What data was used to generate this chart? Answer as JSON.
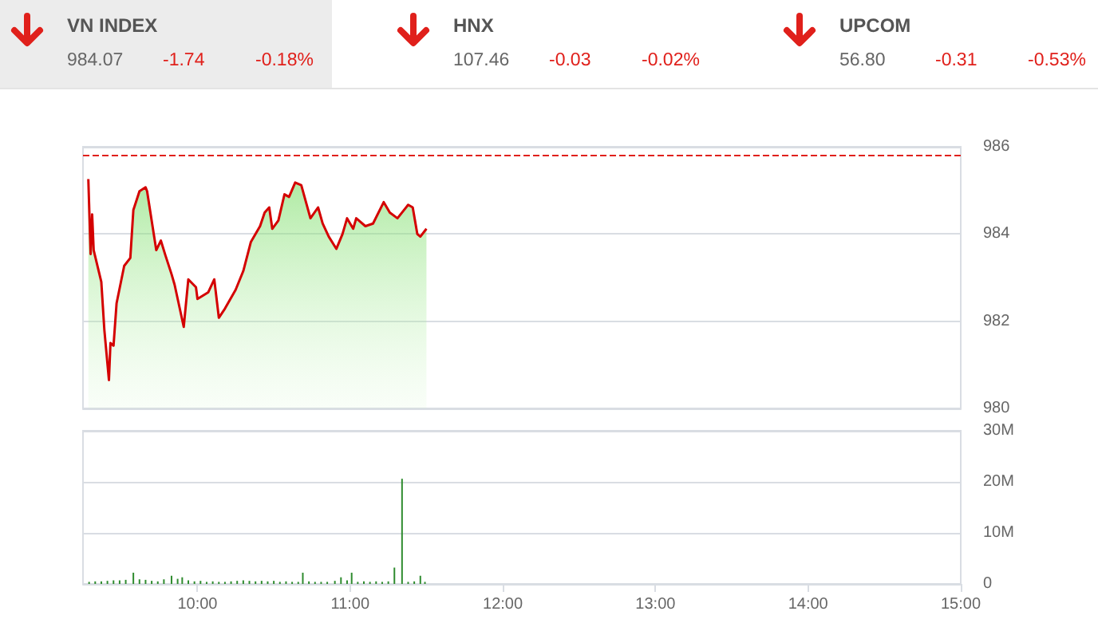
{
  "chart_data": [
    {
      "type": "other",
      "categories": [
        "VN INDEX",
        "HNX",
        "UPCOM"
      ],
      "annotations": [
        "984.07",
        "-1.74",
        "-0.18%",
        "107.46",
        "-0.03",
        "-0.02%",
        "56.80",
        "-0.31",
        "-0.53%"
      ]
    },
    {
      "type": "area",
      "xlim": [
        9.25,
        15
      ],
      "ylim": [
        980,
        986
      ],
      "yticks": [
        980,
        982,
        984,
        986
      ],
      "grid": "y",
      "tick_labels": "y",
      "marker": "none",
      "xticks": [
        {
          "value": 10,
          "label": null
        },
        {
          "value": 11,
          "label": null
        },
        {
          "value": 12,
          "label": null
        },
        {
          "value": 13,
          "label": null
        },
        {
          "value": 14,
          "label": null
        },
        {
          "value": 15,
          "label": null
        }
      ],
      "ref_lines": [
        {
          "axis": "y",
          "value": 985.81,
          "label": null,
          "color": "#e0201b",
          "line_style": "dashed"
        }
      ],
      "series": [
        {
          "color": "#d40000",
          "x": [
            9.285,
            9.3,
            9.31,
            9.32,
            9.37,
            9.39,
            9.42,
            9.43,
            9.45,
            9.47,
            9.52,
            9.56,
            9.58,
            9.62,
            9.66,
            9.67,
            9.73,
            9.76,
            9.79,
            9.83,
            9.85,
            9.91,
            9.94,
            9.99,
            10.0,
            10.07,
            10.11,
            10.14,
            10.18,
            10.25,
            10.3,
            10.35,
            10.41,
            10.44,
            10.47,
            10.49,
            10.53,
            10.57,
            10.6,
            10.64,
            10.68,
            10.74,
            10.79,
            10.82,
            10.86,
            10.91,
            10.95,
            10.98,
            11.02,
            11.04,
            11.1,
            11.15,
            11.22,
            11.26,
            11.31,
            11.38,
            11.41,
            11.44,
            11.46,
            11.5
          ],
          "values": [
            985.26,
            983.54,
            984.45,
            983.63,
            982.9,
            981.8,
            980.65,
            981.5,
            981.44,
            982.41,
            983.27,
            983.45,
            984.55,
            984.98,
            985.07,
            984.98,
            983.63,
            983.85,
            983.51,
            983.08,
            982.84,
            981.87,
            982.96,
            982.78,
            982.51,
            982.66,
            982.96,
            982.08,
            982.29,
            982.72,
            983.15,
            983.82,
            984.18,
            984.49,
            984.61,
            984.12,
            984.31,
            984.91,
            984.85,
            985.18,
            985.12,
            984.36,
            984.61,
            984.24,
            983.94,
            983.66,
            984.0,
            984.36,
            984.12,
            984.36,
            984.18,
            984.24,
            984.73,
            984.49,
            984.36,
            984.67,
            984.61,
            984.0,
            983.94,
            984.12
          ]
        }
      ]
    },
    {
      "type": "bar",
      "xlim": [
        9.25,
        15
      ],
      "ylim": [
        0,
        30
      ],
      "grid": "y",
      "yticks": [
        0,
        {
          "value": 10,
          "label": "10M"
        },
        {
          "value": 20,
          "label": "20M"
        },
        {
          "value": 30,
          "label": "30M"
        }
      ],
      "xticks": [
        {
          "value": 10,
          "label": "10:00"
        },
        {
          "value": 11,
          "label": "11:00"
        },
        {
          "value": 12,
          "label": "12:00"
        },
        {
          "value": 13,
          "label": "13:00"
        },
        {
          "value": 14,
          "label": "14:00"
        },
        {
          "value": 15,
          "label": "15:00"
        }
      ],
      "series": [
        {
          "color": "#2e8b2e",
          "x": [
            9.29,
            9.33,
            9.37,
            9.41,
            9.45,
            9.49,
            9.53,
            9.58,
            9.62,
            9.66,
            9.7,
            9.74,
            9.78,
            9.83,
            9.87,
            9.9,
            9.94,
            9.98,
            10.02,
            10.06,
            10.1,
            10.14,
            10.18,
            10.22,
            10.26,
            10.3,
            10.34,
            10.38,
            10.42,
            10.46,
            10.5,
            10.54,
            10.58,
            10.62,
            10.66,
            10.69,
            10.73,
            10.77,
            10.81,
            10.85,
            10.9,
            10.94,
            10.98,
            11.01,
            11.05,
            11.09,
            11.13,
            11.17,
            11.21,
            11.25,
            11.29,
            11.34,
            11.38,
            11.42,
            11.46,
            11.49
          ],
          "values": [
            0.4,
            0.5,
            0.5,
            0.6,
            0.7,
            0.7,
            0.8,
            2.2,
            0.9,
            0.8,
            0.6,
            0.5,
            0.9,
            1.6,
            1.0,
            1.3,
            0.7,
            0.5,
            0.6,
            0.4,
            0.5,
            0.4,
            0.4,
            0.5,
            0.6,
            0.7,
            0.6,
            0.5,
            0.6,
            0.5,
            0.6,
            0.4,
            0.5,
            0.4,
            0.4,
            2.2,
            0.5,
            0.4,
            0.4,
            0.4,
            0.6,
            1.3,
            0.7,
            2.2,
            0.4,
            0.5,
            0.4,
            0.5,
            0.4,
            0.5,
            3.2,
            20.6,
            0.4,
            0.5,
            1.6,
            0.4
          ]
        }
      ]
    }
  ]
}
